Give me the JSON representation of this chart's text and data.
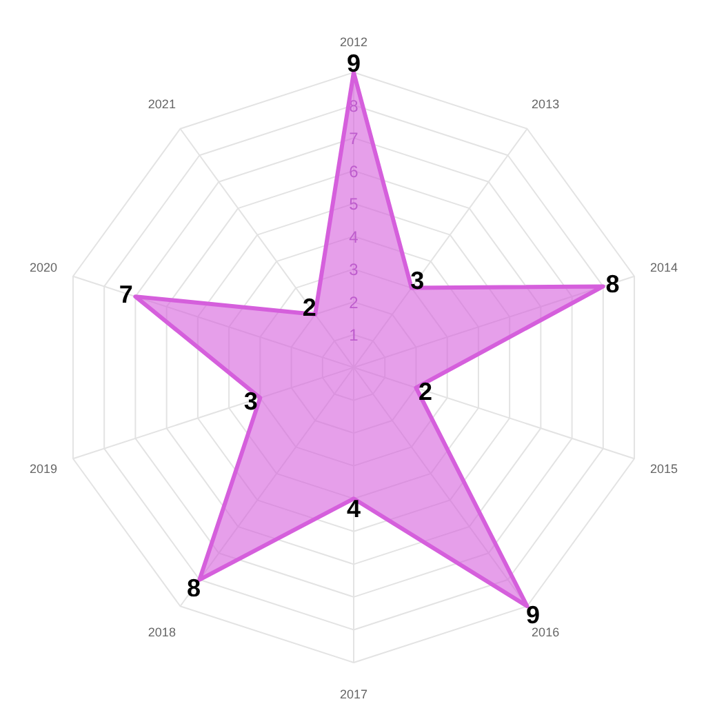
{
  "chart_data": {
    "type": "radar",
    "categories": [
      "2012",
      "2013",
      "2014",
      "2015",
      "2016",
      "2017",
      "2018",
      "2019",
      "2020",
      "2021"
    ],
    "series": [
      {
        "color": "#d55fdc",
        "values": [
          9,
          3,
          8,
          2,
          9,
          4,
          8,
          3,
          7,
          2
        ]
      }
    ],
    "ylim": [
      0,
      9
    ],
    "yticks": [
      1,
      2,
      3,
      4,
      5,
      6,
      7,
      8
    ],
    "grid": true,
    "data_labels": true
  }
}
